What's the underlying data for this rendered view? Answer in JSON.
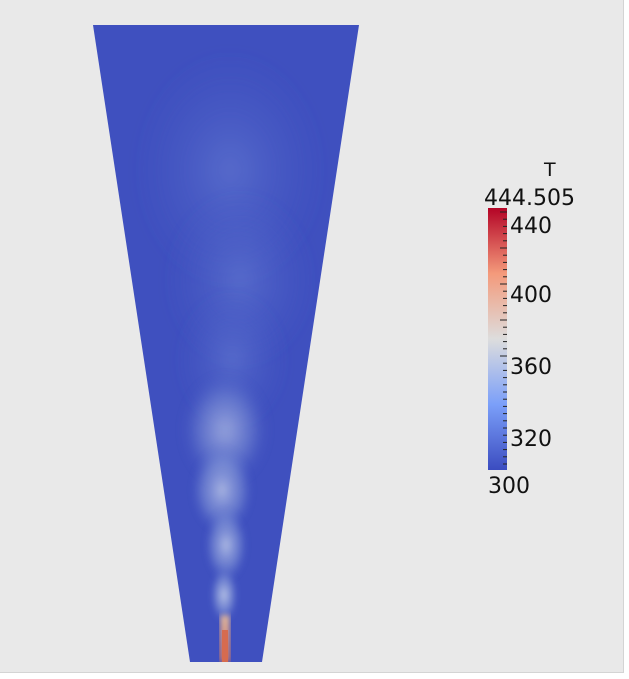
{
  "legend": {
    "title": "T",
    "max": "444.505",
    "min": "300",
    "ticks": [
      "440",
      "400",
      "360",
      "320"
    ],
    "colors": {
      "low": "#3b4cc0",
      "mid": "#dddddd",
      "high": "#b40426"
    }
  },
  "scene": {
    "background": "#e9e9e9",
    "domain_color": "#3b4cc0"
  }
}
